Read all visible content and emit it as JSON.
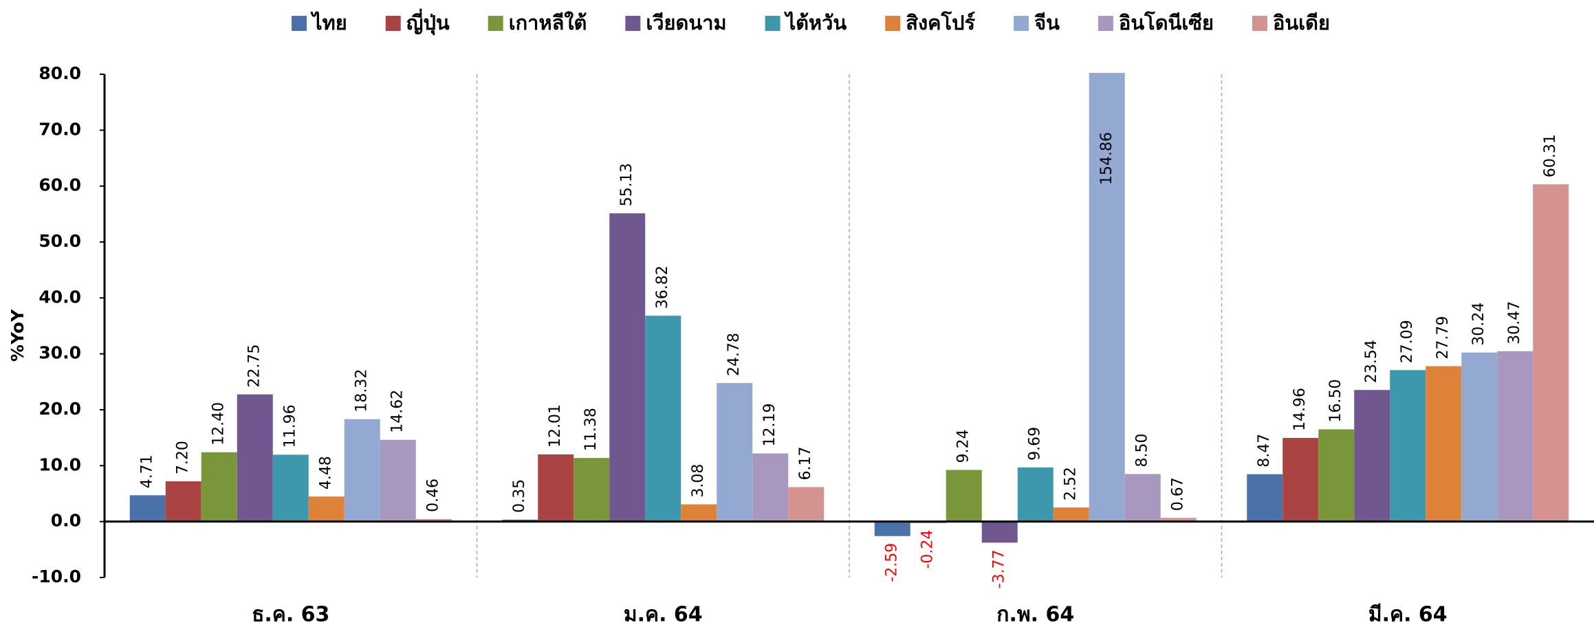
{
  "chart_data": {
    "type": "bar",
    "y_label": "%YoY",
    "categories": [
      "ธ.ค. 63",
      "ม.ค. 64",
      "ก.พ. 64",
      "มี.ค. 64"
    ],
    "series": [
      {
        "name": "ไทย",
        "color": "#4a72a8",
        "values": [
          4.71,
          0.35,
          -2.59,
          8.47
        ],
        "value_labels": [
          "4.71",
          "0.35",
          "-2.59",
          "8.47"
        ]
      },
      {
        "name": "ญี่ปุ่น",
        "color": "#a94442",
        "values": [
          7.2,
          12.01,
          -0.24,
          14.96
        ],
        "value_labels": [
          "7.20",
          "12.01",
          "-0.24",
          "14.96"
        ]
      },
      {
        "name": "เกาหลีใต้",
        "color": "#7a963a",
        "values": [
          12.4,
          11.38,
          9.24,
          16.5
        ],
        "value_labels": [
          "12.40",
          "11.38",
          "9.24",
          "16.50"
        ]
      },
      {
        "name": "เวียดนาม",
        "color": "#71578f",
        "values": [
          22.75,
          55.13,
          -3.77,
          23.54
        ],
        "value_labels": [
          "22.75",
          "55.13",
          "-3.77",
          "23.54"
        ]
      },
      {
        "name": "ไต้หวัน",
        "color": "#3d97ad",
        "values": [
          11.96,
          36.82,
          9.69,
          27.09
        ],
        "value_labels": [
          "11.96",
          "36.82",
          "9.69",
          "27.09"
        ]
      },
      {
        "name": "สิงคโปร์",
        "color": "#de8239",
        "values": [
          4.48,
          3.08,
          2.52,
          27.79
        ],
        "value_labels": [
          "4.48",
          "3.08",
          "2.52",
          "27.79"
        ]
      },
      {
        "name": "จีน",
        "color": "#93a9d1",
        "values": [
          18.32,
          24.78,
          154.86,
          30.24
        ],
        "value_labels": [
          "18.32",
          "24.78",
          "154.86",
          "30.24"
        ]
      },
      {
        "name": "อินโดนีเซีย",
        "color": "#a898bf",
        "values": [
          14.62,
          12.19,
          8.5,
          30.47
        ],
        "value_labels": [
          "14.62",
          "12.19",
          "8.50",
          "30.47"
        ]
      },
      {
        "name": "อินเดีย",
        "color": "#d49290",
        "values": [
          0.46,
          6.17,
          0.67,
          60.31
        ],
        "value_labels": [
          "0.46",
          "6.17",
          "0.67",
          "60.31"
        ]
      }
    ],
    "ylim": [
      -10,
      80
    ],
    "yticks": [
      {
        "value": -10,
        "label": "-10.0"
      },
      {
        "value": 0,
        "label": "0.0"
      },
      {
        "value": 10,
        "label": "10.0"
      },
      {
        "value": 20,
        "label": "20.0"
      },
      {
        "value": 30,
        "label": "30.0"
      },
      {
        "value": 40,
        "label": "40.0"
      },
      {
        "value": 50,
        "label": "50.0"
      },
      {
        "value": 60,
        "label": "60.0"
      },
      {
        "value": 70,
        "label": "70.0"
      },
      {
        "value": 80,
        "label": "80.0"
      }
    ],
    "grid": false,
    "legend": "top",
    "negative_label_color": "#ff0000"
  }
}
